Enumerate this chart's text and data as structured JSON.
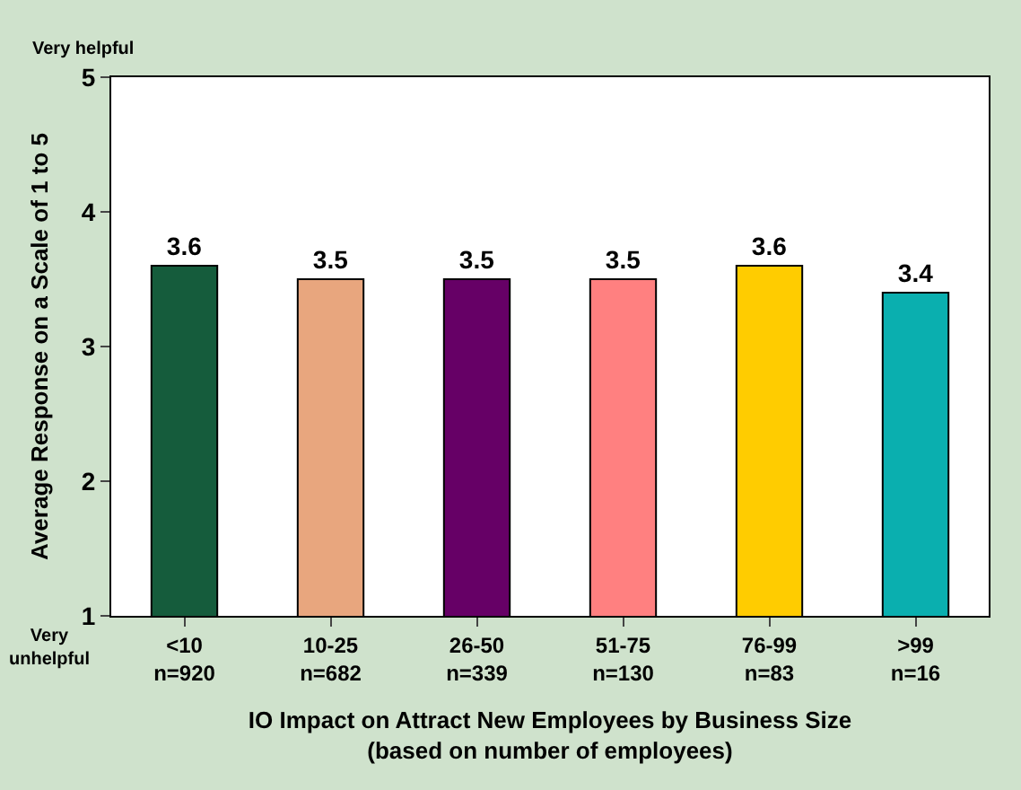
{
  "chart_data": {
    "type": "bar",
    "categories": [
      "<10\nn=920",
      "10-25\nn=682",
      "26-50\nn=339",
      "51-75\nn=130",
      "76-99\nn=83",
      ">99\nn=16"
    ],
    "values": [
      3.6,
      3.5,
      3.5,
      3.5,
      3.6,
      3.4
    ],
    "colors": [
      "#155c3c",
      "#e8a67e",
      "#660066",
      "#ff8080",
      "#ffcc00",
      "#0aafaf"
    ],
    "xlabel": "IO Impact on Attract New Employees by Business Size\n(based on number of employees)",
    "ylabel": "Average Response on a Scale of 1 to 5",
    "ylim": [
      1,
      5
    ],
    "yticks": [
      1,
      2,
      3,
      4,
      5
    ],
    "annotations": [
      "Very helpful",
      "Very\nunhelpful"
    ],
    "data_labels": true
  }
}
